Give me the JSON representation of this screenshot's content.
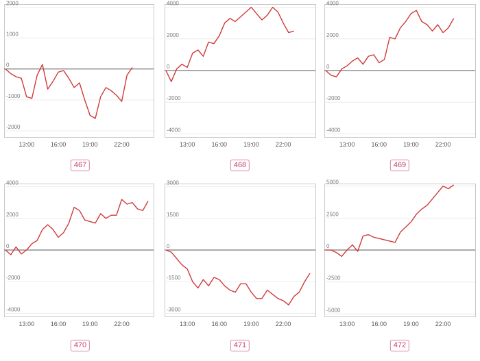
{
  "chart_data": [
    {
      "type": "line",
      "label": "467",
      "ylim": [
        -2200,
        2100
      ],
      "yticks": [
        2000,
        1000,
        0,
        -1000,
        -2000
      ],
      "xticks": [
        {
          "x": 4,
          "label": "13:00"
        },
        {
          "x": 10,
          "label": "16:00"
        },
        {
          "x": 16,
          "label": "19:00"
        },
        {
          "x": 22,
          "label": "22:00"
        }
      ],
      "x": [
        0,
        1,
        2,
        3,
        4,
        5,
        6,
        7,
        8,
        9,
        10,
        11,
        12,
        13,
        14,
        15,
        16,
        17,
        18,
        19,
        20,
        21,
        22,
        23,
        24
      ],
      "series": [
        {
          "values": [
            0,
            -150,
            -250,
            -300,
            -900,
            -950,
            -200,
            150,
            -650,
            -400,
            -100,
            -50,
            -300,
            -600,
            -450,
            -1000,
            -1500,
            -1600,
            -900,
            -600,
            -700,
            -850,
            -1050,
            -200,
            50
          ]
        }
      ],
      "color": "#cf3a3a"
    },
    {
      "type": "line",
      "label": "468",
      "ylim": [
        -4200,
        4200
      ],
      "yticks": [
        4000,
        2000,
        0,
        -2000,
        -4000
      ],
      "xticks": [
        {
          "x": 4,
          "label": "13:00"
        },
        {
          "x": 10,
          "label": "16:00"
        },
        {
          "x": 16,
          "label": "19:00"
        },
        {
          "x": 22,
          "label": "22:00"
        }
      ],
      "x": [
        0,
        1,
        2,
        3,
        4,
        5,
        6,
        7,
        8,
        9,
        10,
        11,
        12,
        13,
        14,
        15,
        16,
        17,
        18,
        19,
        20,
        21,
        22,
        23,
        24
      ],
      "series": [
        {
          "values": [
            0,
            -700,
            100,
            400,
            200,
            1100,
            1300,
            900,
            1800,
            1700,
            2200,
            3000,
            3300,
            3100,
            3400,
            3700,
            4000,
            3600,
            3200,
            3500,
            4000,
            3700,
            3000,
            2400,
            2500
          ]
        }
      ],
      "color": "#cf3a3a"
    },
    {
      "type": "line",
      "label": "469",
      "ylim": [
        -4200,
        4200
      ],
      "yticks": [
        4000,
        2000,
        0,
        -2000,
        -4000
      ],
      "xticks": [
        {
          "x": 4,
          "label": "13:00"
        },
        {
          "x": 10,
          "label": "16:00"
        },
        {
          "x": 16,
          "label": "19:00"
        },
        {
          "x": 22,
          "label": "22:00"
        }
      ],
      "x": [
        0,
        1,
        2,
        3,
        4,
        5,
        6,
        7,
        8,
        9,
        10,
        11,
        12,
        13,
        14,
        15,
        16,
        17,
        18,
        19,
        20,
        21,
        22,
        23,
        24
      ],
      "series": [
        {
          "values": [
            0,
            -300,
            -400,
            100,
            300,
            600,
            800,
            400,
            900,
            1000,
            500,
            700,
            2100,
            2000,
            2700,
            3100,
            3600,
            3800,
            3100,
            2900,
            2500,
            2900,
            2400,
            2700,
            3300
          ]
        }
      ],
      "color": "#cf3a3a"
    },
    {
      "type": "line",
      "label": "470",
      "ylim": [
        -4200,
        4200
      ],
      "yticks": [
        4000,
        2000,
        0,
        -2000,
        -4000
      ],
      "xticks": [
        {
          "x": 4,
          "label": "13:00"
        },
        {
          "x": 10,
          "label": "16:00"
        },
        {
          "x": 16,
          "label": "19:00"
        },
        {
          "x": 22,
          "label": "22:00"
        }
      ],
      "x": [
        0,
        1,
        2,
        3,
        4,
        5,
        6,
        7,
        8,
        9,
        10,
        11,
        12,
        13,
        14,
        15,
        16,
        17,
        18,
        19,
        20,
        21,
        22,
        23,
        24,
        25,
        26,
        27
      ],
      "series": [
        {
          "values": [
            0,
            -300,
            200,
            -250,
            0,
            400,
            600,
            1300,
            1600,
            1300,
            800,
            1100,
            1700,
            2700,
            2500,
            1900,
            1800,
            1700,
            2300,
            2000,
            2200,
            2200,
            3200,
            2900,
            3000,
            2600,
            2500,
            3100
          ]
        }
      ],
      "color": "#cf3a3a"
    },
    {
      "type": "line",
      "label": "471",
      "ylim": [
        -3150,
        3150
      ],
      "yticks": [
        3000,
        1500,
        0,
        -1500,
        -3000
      ],
      "xticks": [
        {
          "x": 4,
          "label": "13:00"
        },
        {
          "x": 10,
          "label": "16:00"
        },
        {
          "x": 16,
          "label": "19:00"
        },
        {
          "x": 22,
          "label": "22:00"
        }
      ],
      "x": [
        0,
        1,
        2,
        3,
        4,
        5,
        6,
        7,
        8,
        9,
        10,
        11,
        12,
        13,
        14,
        15,
        16,
        17,
        18,
        19,
        20,
        21,
        22,
        23,
        24,
        25,
        26,
        27
      ],
      "series": [
        {
          "values": [
            0,
            -100,
            -400,
            -700,
            -900,
            -1500,
            -1800,
            -1400,
            -1700,
            -1300,
            -1400,
            -1700,
            -1900,
            -2000,
            -1600,
            -1600,
            -2000,
            -2300,
            -2300,
            -1900,
            -2100,
            -2300,
            -2400,
            -2600,
            -2200,
            -2000,
            -1500,
            -1100
          ]
        }
      ],
      "color": "#cf3a3a"
    },
    {
      "type": "line",
      "label": "472",
      "ylim": [
        -5200,
        5200
      ],
      "yticks": [
        5000,
        2500,
        0,
        -2500,
        -5000
      ],
      "xticks": [
        {
          "x": 4,
          "label": "13:00"
        },
        {
          "x": 10,
          "label": "16:00"
        },
        {
          "x": 16,
          "label": "19:00"
        },
        {
          "x": 22,
          "label": "22:00"
        }
      ],
      "x": [
        0,
        1,
        2,
        3,
        4,
        5,
        6,
        7,
        8,
        9,
        10,
        11,
        12,
        13,
        14,
        15,
        16,
        17,
        18,
        19,
        20,
        21,
        22,
        23,
        24
      ],
      "series": [
        {
          "values": [
            0,
            0,
            -200,
            -500,
            0,
            400,
            -100,
            1100,
            1200,
            1000,
            900,
            800,
            700,
            600,
            1400,
            1800,
            2200,
            2800,
            3200,
            3500,
            4000,
            4500,
            5000,
            4800,
            5100
          ]
        }
      ],
      "color": "#cf3a3a"
    }
  ]
}
